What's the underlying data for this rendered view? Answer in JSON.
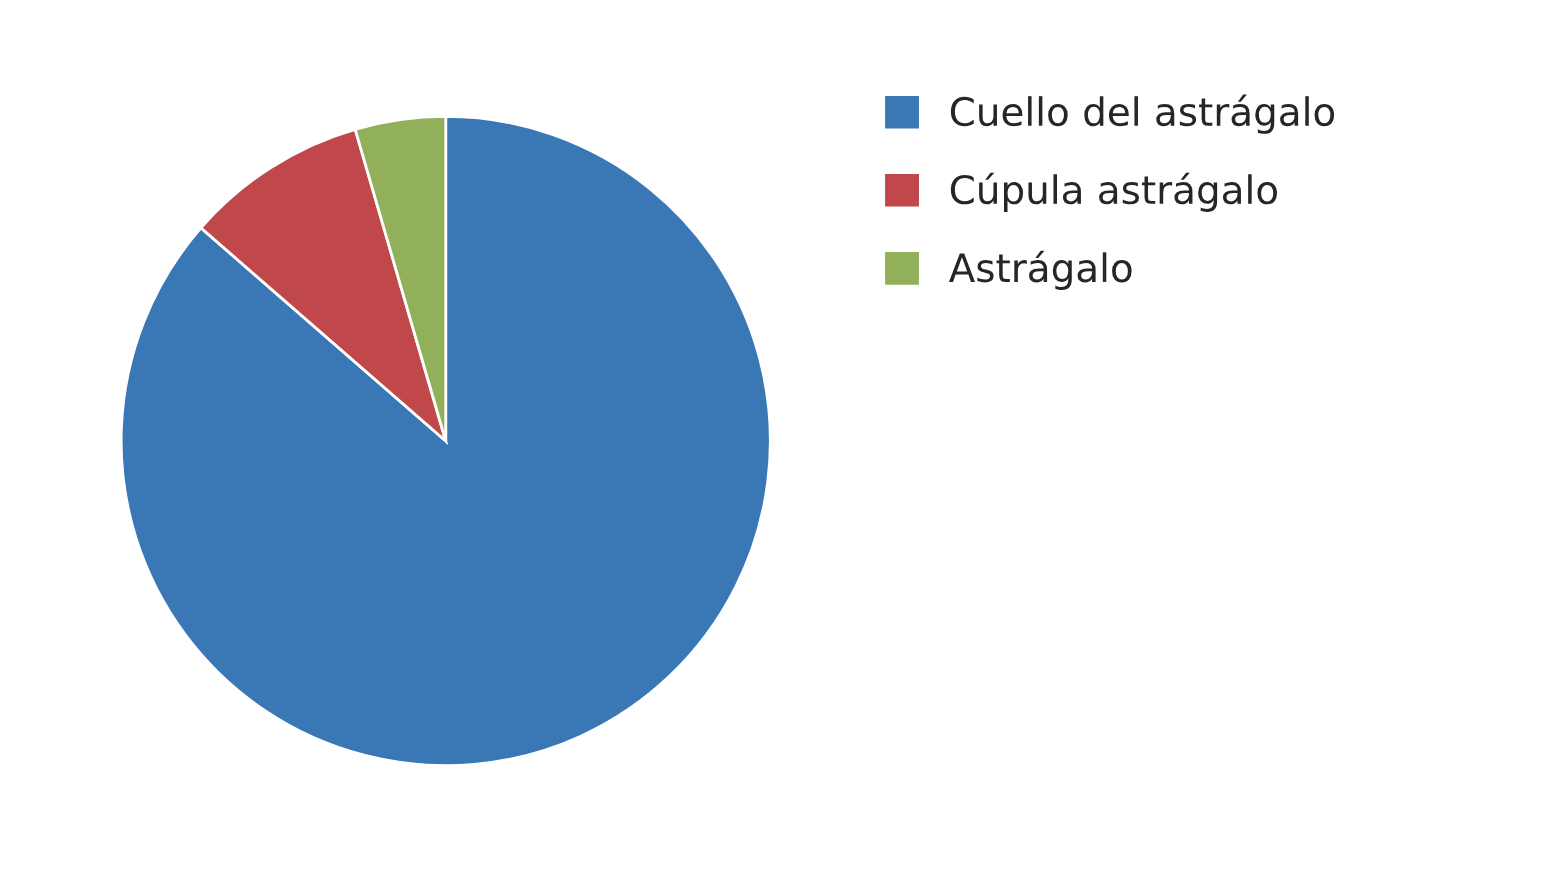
{
  "chart_data": {
    "type": "pie",
    "categories": [
      "Cuello del astrágalo",
      "Cúpula astrágalo",
      "Astrágalo"
    ],
    "values": [
      86.4,
      9.1,
      4.5
    ],
    "colors": [
      "#3a78b5",
      "#c0474a",
      "#92b05a"
    ],
    "legend": "right"
  }
}
